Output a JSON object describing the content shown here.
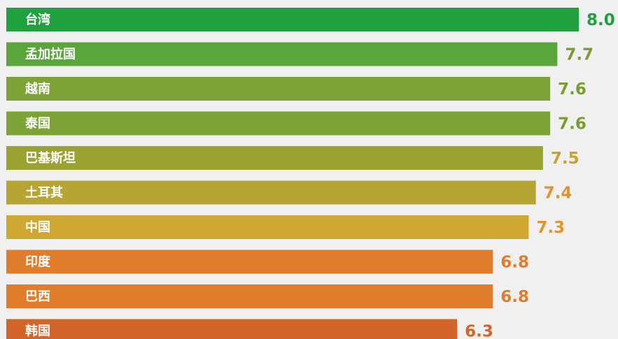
{
  "chart_data": {
    "type": "bar",
    "orientation": "horizontal",
    "categories": [
      "台湾",
      "孟加拉国",
      "越南",
      "泰国",
      "巴基斯坦",
      "土耳其",
      "中国",
      "印度",
      "巴西",
      "韩国"
    ],
    "values": [
      8.0,
      7.7,
      7.6,
      7.6,
      7.5,
      7.4,
      7.3,
      6.8,
      6.8,
      6.3
    ],
    "value_labels": [
      "8.0",
      "7.7",
      "7.6",
      "7.6",
      "7.5",
      "7.4",
      "7.3",
      "6.8",
      "6.8",
      "6.3"
    ],
    "colors": [
      "#21a040",
      "#5aa63c",
      "#7da336",
      "#7da336",
      "#9aa332",
      "#b6a532",
      "#cfa833",
      "#e07d2a",
      "#e07d2a",
      "#d4652a"
    ],
    "label_colors": [
      "#21a040",
      "#7a9c33",
      "#7a9c33",
      "#7a9c33",
      "#c7a22f",
      "#e0952c",
      "#e0952c",
      "#e07d2a",
      "#e07d2a",
      "#d4652a"
    ],
    "xlim": [
      0,
      8.0
    ],
    "title": "",
    "xlabel": "",
    "ylabel": "",
    "grid": false,
    "legend": "none"
  }
}
